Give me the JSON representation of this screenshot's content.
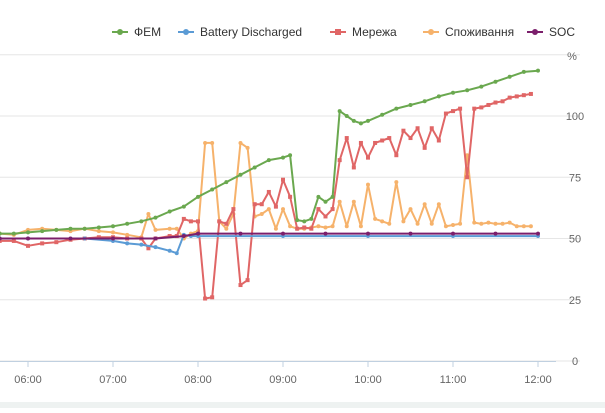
{
  "chart_data": {
    "type": "line",
    "unit_label": "%",
    "y_axis": {
      "ticks": [
        "0",
        "25",
        "50",
        "75",
        "100"
      ],
      "ylim": [
        0,
        120
      ]
    },
    "x_axis": {
      "ticks": [
        "06:00",
        "07:00",
        "08:00",
        "09:00",
        "10:00",
        "11:00",
        "12:00"
      ],
      "xlim": [
        "05:35",
        "12:10"
      ]
    },
    "grid": "horizontal",
    "legend": "top-right",
    "series": [
      {
        "name": "ФЕМ",
        "color": "#6aa84f",
        "points": [
          [
            "05:40",
            52
          ],
          [
            "05:50",
            52
          ],
          [
            "06:00",
            52.5
          ],
          [
            "06:10",
            53
          ],
          [
            "06:20",
            53.5
          ],
          [
            "06:30",
            54
          ],
          [
            "06:40",
            54
          ],
          [
            "06:50",
            54.5
          ],
          [
            "07:00",
            55
          ],
          [
            "07:10",
            56
          ],
          [
            "07:20",
            57
          ],
          [
            "07:30",
            58.5
          ],
          [
            "07:40",
            61
          ],
          [
            "07:50",
            63
          ],
          [
            "08:00",
            67
          ],
          [
            "08:10",
            70
          ],
          [
            "08:20",
            73
          ],
          [
            "08:30",
            76
          ],
          [
            "08:40",
            79
          ],
          [
            "08:50",
            82
          ],
          [
            "09:00",
            83
          ],
          [
            "09:05",
            84
          ],
          [
            "09:10",
            57.5
          ],
          [
            "09:15",
            57
          ],
          [
            "09:20",
            58
          ],
          [
            "09:25",
            67
          ],
          [
            "09:30",
            65
          ],
          [
            "09:35",
            67
          ],
          [
            "09:40",
            102
          ],
          [
            "09:45",
            100
          ],
          [
            "09:50",
            98
          ],
          [
            "09:55",
            97
          ],
          [
            "10:00",
            98
          ],
          [
            "10:10",
            100.5
          ],
          [
            "10:20",
            103
          ],
          [
            "10:30",
            104.5
          ],
          [
            "10:40",
            106
          ],
          [
            "10:50",
            108
          ],
          [
            "11:00",
            109.5
          ],
          [
            "11:10",
            110.5
          ],
          [
            "11:20",
            112
          ],
          [
            "11:30",
            114
          ],
          [
            "11:40",
            116
          ],
          [
            "11:50",
            118
          ],
          [
            "12:00",
            118.5
          ]
        ]
      },
      {
        "name": "Battery Discharged",
        "color": "#5b9bd5",
        "points": [
          [
            "05:40",
            50
          ],
          [
            "06:00",
            50
          ],
          [
            "06:40",
            50
          ],
          [
            "07:00",
            49
          ],
          [
            "07:10",
            48
          ],
          [
            "07:20",
            47.5
          ],
          [
            "07:30",
            46.5
          ],
          [
            "07:40",
            45
          ],
          [
            "07:45",
            44
          ],
          [
            "07:50",
            51.5
          ],
          [
            "07:55",
            51
          ],
          [
            "08:00",
            51
          ],
          [
            "09:00",
            51
          ],
          [
            "10:00",
            51
          ],
          [
            "11:00",
            51
          ],
          [
            "12:00",
            51
          ]
        ]
      },
      {
        "name": "Мережа",
        "color": "#e06666",
        "points": [
          [
            "05:40",
            49
          ],
          [
            "05:50",
            49
          ],
          [
            "06:00",
            47
          ],
          [
            "06:10",
            48
          ],
          [
            "06:20",
            48.5
          ],
          [
            "06:30",
            49.5
          ],
          [
            "06:40",
            50
          ],
          [
            "06:50",
            50.5
          ],
          [
            "07:00",
            50.5
          ],
          [
            "07:10",
            50
          ],
          [
            "07:20",
            50
          ],
          [
            "07:25",
            46
          ],
          [
            "07:30",
            50
          ],
          [
            "07:40",
            51
          ],
          [
            "07:45",
            51
          ],
          [
            "07:50",
            58
          ],
          [
            "07:55",
            57
          ],
          [
            "08:00",
            57
          ],
          [
            "08:05",
            25.5
          ],
          [
            "08:10",
            26
          ],
          [
            "08:15",
            57
          ],
          [
            "08:20",
            56
          ],
          [
            "08:25",
            62
          ],
          [
            "08:30",
            31
          ],
          [
            "08:35",
            33
          ],
          [
            "08:40",
            64
          ],
          [
            "08:45",
            64
          ],
          [
            "08:50",
            69
          ],
          [
            "08:55",
            63
          ],
          [
            "09:00",
            74
          ],
          [
            "09:05",
            67
          ],
          [
            "09:10",
            54
          ],
          [
            "09:15",
            54.5
          ],
          [
            "09:20",
            54
          ],
          [
            "09:25",
            62
          ],
          [
            "09:30",
            59
          ],
          [
            "09:35",
            62
          ],
          [
            "09:40",
            82
          ],
          [
            "09:45",
            91
          ],
          [
            "09:50",
            79
          ],
          [
            "09:55",
            89
          ],
          [
            "10:00",
            83
          ],
          [
            "10:05",
            89
          ],
          [
            "10:10",
            90
          ],
          [
            "10:15",
            91
          ],
          [
            "10:20",
            84
          ],
          [
            "10:25",
            94
          ],
          [
            "10:30",
            91
          ],
          [
            "10:35",
            95
          ],
          [
            "10:40",
            87
          ],
          [
            "10:45",
            95
          ],
          [
            "10:50",
            90
          ],
          [
            "10:55",
            101
          ],
          [
            "11:00",
            102
          ],
          [
            "11:05",
            103
          ],
          [
            "11:10",
            75
          ],
          [
            "11:15",
            103
          ],
          [
            "11:20",
            103.5
          ],
          [
            "11:25",
            104.5
          ],
          [
            "11:30",
            105.5
          ],
          [
            "11:35",
            106
          ],
          [
            "11:40",
            107.5
          ],
          [
            "11:45",
            108
          ],
          [
            "11:50",
            108.5
          ],
          [
            "11:55",
            109
          ]
        ]
      },
      {
        "name": "Споживання",
        "color": "#f6b26b",
        "points": [
          [
            "05:40",
            52
          ],
          [
            "05:50",
            51.5
          ],
          [
            "06:00",
            53.5
          ],
          [
            "06:10",
            54
          ],
          [
            "06:20",
            53.5
          ],
          [
            "06:30",
            53
          ],
          [
            "06:40",
            54
          ],
          [
            "06:50",
            53
          ],
          [
            "07:00",
            52.5
          ],
          [
            "07:10",
            51.5
          ],
          [
            "07:20",
            50.5
          ],
          [
            "07:25",
            60
          ],
          [
            "07:30",
            53.5
          ],
          [
            "07:40",
            54
          ],
          [
            "07:45",
            54
          ],
          [
            "07:50",
            50
          ],
          [
            "07:55",
            52
          ],
          [
            "08:00",
            53
          ],
          [
            "08:05",
            89
          ],
          [
            "08:10",
            89
          ],
          [
            "08:15",
            57
          ],
          [
            "08:20",
            54
          ],
          [
            "08:25",
            60
          ],
          [
            "08:30",
            89
          ],
          [
            "08:35",
            87
          ],
          [
            "08:40",
            59
          ],
          [
            "08:45",
            60
          ],
          [
            "08:50",
            62
          ],
          [
            "08:55",
            54
          ],
          [
            "09:00",
            62
          ],
          [
            "09:05",
            55
          ],
          [
            "09:10",
            54
          ],
          [
            "09:15",
            54
          ],
          [
            "09:20",
            54.5
          ],
          [
            "09:25",
            55
          ],
          [
            "09:30",
            54.5
          ],
          [
            "09:35",
            55
          ],
          [
            "09:40",
            65
          ],
          [
            "09:45",
            55
          ],
          [
            "09:50",
            65
          ],
          [
            "09:55",
            55
          ],
          [
            "10:00",
            72
          ],
          [
            "10:05",
            58
          ],
          [
            "10:10",
            57
          ],
          [
            "10:15",
            56
          ],
          [
            "10:20",
            73
          ],
          [
            "10:25",
            57
          ],
          [
            "10:30",
            62
          ],
          [
            "10:35",
            56
          ],
          [
            "10:40",
            64
          ],
          [
            "10:45",
            56
          ],
          [
            "10:50",
            64
          ],
          [
            "10:55",
            55
          ],
          [
            "11:00",
            55.5
          ],
          [
            "11:05",
            56
          ],
          [
            "11:10",
            84
          ],
          [
            "11:15",
            56.5
          ],
          [
            "11:20",
            56
          ],
          [
            "11:25",
            56.5
          ],
          [
            "11:30",
            56
          ],
          [
            "11:35",
            56
          ],
          [
            "11:40",
            56.5
          ],
          [
            "11:45",
            55
          ],
          [
            "11:50",
            55
          ],
          [
            "11:55",
            55
          ]
        ]
      },
      {
        "name": "SOC",
        "color": "#7b1f6b",
        "points": [
          [
            "05:40",
            50
          ],
          [
            "06:00",
            50
          ],
          [
            "06:30",
            50
          ],
          [
            "07:00",
            50
          ],
          [
            "07:30",
            50
          ],
          [
            "07:50",
            51
          ],
          [
            "08:00",
            52
          ],
          [
            "08:30",
            52
          ],
          [
            "09:00",
            52
          ],
          [
            "09:30",
            52
          ],
          [
            "10:00",
            52
          ],
          [
            "10:30",
            52
          ],
          [
            "11:00",
            52
          ],
          [
            "11:30",
            52
          ],
          [
            "12:00",
            52
          ]
        ]
      }
    ]
  }
}
